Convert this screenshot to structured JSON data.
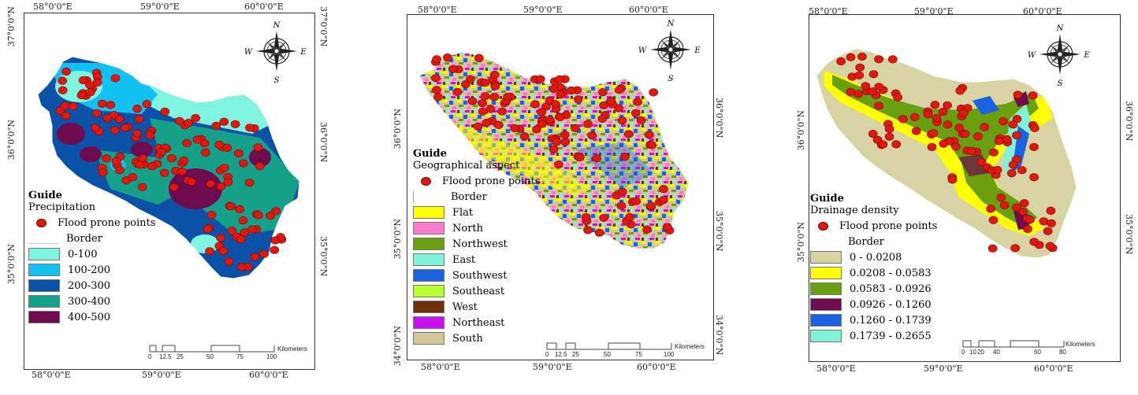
{
  "marker_color": "#e0190f",
  "panels": [
    {
      "coords": {
        "top": [
          "58°0'0\"E",
          "59°0'0\"E",
          "60°0'0\"E"
        ],
        "bottom": [
          "58°0'0\"E",
          "59°0'0\"E",
          "60°0'0\"E"
        ],
        "left": [
          "37°0'0\"N",
          "36°0'0\"N",
          "35°0'0\"N"
        ],
        "right": [
          "37°0'0\"N",
          "36°0'0\"N",
          "35°0'0\"N"
        ]
      },
      "compass": {
        "n": "N",
        "s": "S",
        "e": "E",
        "w": "W",
        "icon": "compass-rose-icon"
      },
      "legend": {
        "title": "Guide",
        "subtitle": "Precipitation",
        "points_label": "Flood prone points",
        "border_label": "Border",
        "classes": [
          {
            "label": "0-100",
            "color": "#7ff5e0"
          },
          {
            "label": "100-200",
            "color": "#12c0f2"
          },
          {
            "label": "200-300",
            "color": "#0a52a8"
          },
          {
            "label": "300-400",
            "color": "#15a08a"
          },
          {
            "label": "400-500",
            "color": "#6e0a4e"
          }
        ]
      },
      "scale": {
        "ticks": [
          "0",
          "12.5",
          "25",
          "50",
          "75",
          "100"
        ],
        "unit": "Kilometers"
      }
    },
    {
      "coords": {
        "top": [
          "58°0'0\"E",
          "59°0'0\"E",
          "60°0'0\"E"
        ],
        "bottom": [
          "58°0'0\"E",
          "59°0'0\"E",
          "60°0'0\"E"
        ],
        "left": [
          "36°0'0\"N",
          "35°0'0\"N",
          "34°0'0\"N"
        ],
        "right": [
          "36°0'0\"N",
          "35°0'0\"N",
          "34°0'0\"N"
        ]
      },
      "compass": {
        "n": "N",
        "s": "S",
        "e": "E",
        "w": "W",
        "icon": "compass-rose-icon"
      },
      "legend": {
        "title": "Guide",
        "subtitle": "Geographical aspect",
        "points_label": "Flood prone points",
        "border_label": "Border",
        "classes": [
          {
            "label": "Flat",
            "color": "#ffff00"
          },
          {
            "label": "North",
            "color": "#ff7ad0"
          },
          {
            "label": "Northwest",
            "color": "#6aa010"
          },
          {
            "label": "East",
            "color": "#80f2d8"
          },
          {
            "label": "Southwest",
            "color": "#1a62e0"
          },
          {
            "label": "Southeast",
            "color": "#b8ff30"
          },
          {
            "label": "West",
            "color": "#6e3008"
          },
          {
            "label": "Northeast",
            "color": "#c810f0"
          },
          {
            "label": "South",
            "color": "#d6c49a"
          }
        ]
      },
      "scale": {
        "ticks": [
          "0",
          "12.5",
          "25",
          "50",
          "75",
          "100"
        ],
        "unit": "Kilometers"
      }
    },
    {
      "coords": {
        "top": [
          "58°0'0\"E",
          "59°0'0\"E",
          "60°0'0\"E"
        ],
        "bottom": [
          "58°0'0\"E",
          "59°0'0\"E",
          "60°0'0\"E"
        ],
        "left": [
          "36°0'0\"N",
          "35°0'0\"N"
        ],
        "right": [
          "36°0'0\"N",
          "35°0'0\"N"
        ]
      },
      "compass": {
        "n": "N",
        "s": "S",
        "e": "E",
        "w": "W",
        "icon": "compass-rose-icon"
      },
      "legend": {
        "title": "Guide",
        "subtitle": "Drainage density",
        "points_label": "Flood prone points",
        "border_label": "Border",
        "classes": [
          {
            "label": "0 - 0.0208",
            "color": "#d8d3a2"
          },
          {
            "label": "0.0208 - 0.0583",
            "color": "#ffff00"
          },
          {
            "label": "0.0583 - 0.0926",
            "color": "#6aa010"
          },
          {
            "label": "0.0926 - 0.1260",
            "color": "#6e0a4e"
          },
          {
            "label": "0.1260 - 0.1739",
            "color": "#1a62e0"
          },
          {
            "label": "0.1739 - 0.2655",
            "color": "#80f2d8"
          }
        ]
      },
      "scale": {
        "ticks": [
          "0",
          "10",
          "20",
          "40",
          "60",
          "80"
        ],
        "unit": "Kilometers"
      }
    }
  ]
}
